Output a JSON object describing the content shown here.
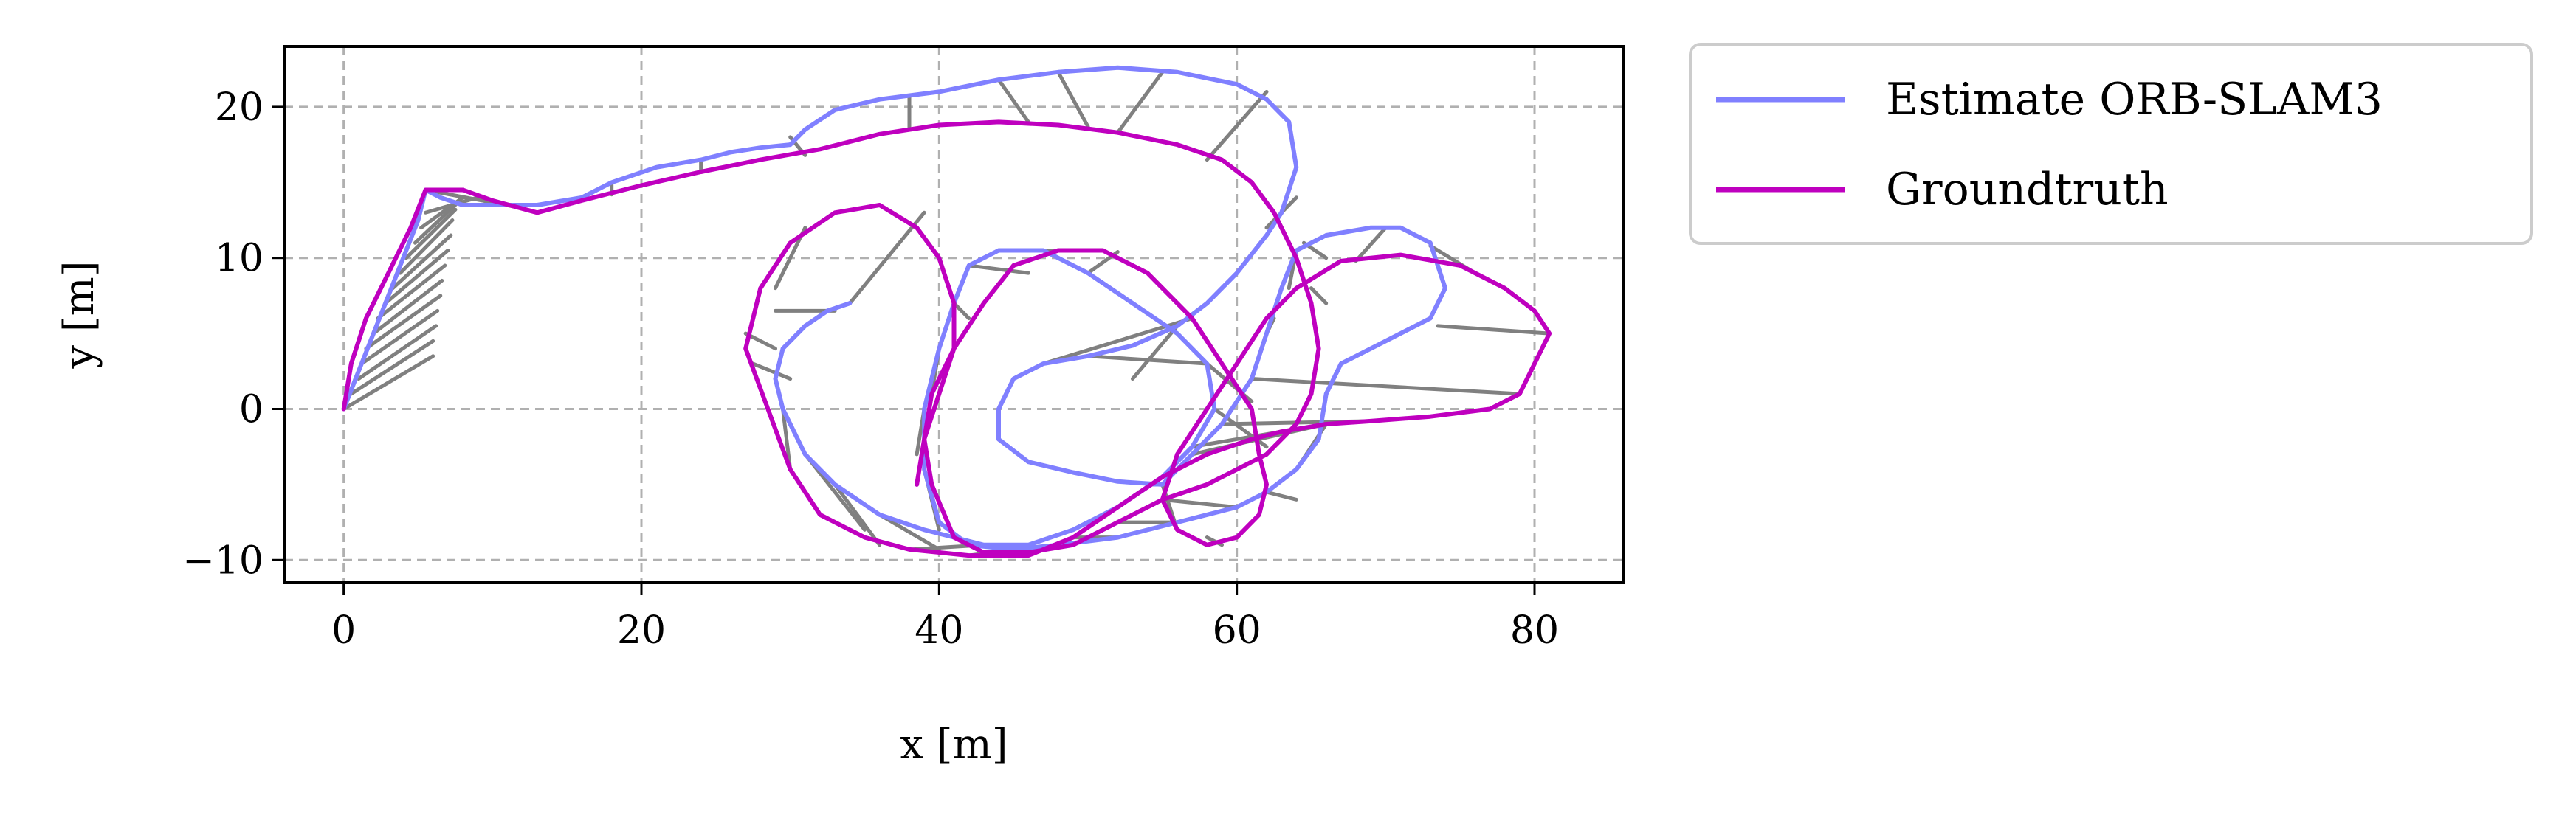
{
  "chart_data": {
    "type": "line",
    "title": "",
    "xlabel": "x [m]",
    "ylabel": "y [m]",
    "xlim": [
      -4,
      86
    ],
    "ylim": [
      -11.5,
      24
    ],
    "xticks": [
      0,
      20,
      40,
      60,
      80
    ],
    "yticks": [
      -10,
      0,
      10,
      20
    ],
    "xtick_labels": [
      "0",
      "20",
      "40",
      "60",
      "80"
    ],
    "ytick_labels": [
      "−10",
      "0",
      "10",
      "20"
    ],
    "grid": true,
    "legend_position": "outside-upper-right",
    "series": [
      {
        "name": "Estimate ORB-SLAM3",
        "color": "#8080ff",
        "points": [
          [
            0,
            0
          ],
          [
            1,
            2.5
          ],
          [
            2,
            5
          ],
          [
            3,
            7.5
          ],
          [
            4,
            10
          ],
          [
            5,
            12.5
          ],
          [
            5.5,
            14.5
          ],
          [
            6.5,
            14
          ],
          [
            8,
            13.5
          ],
          [
            10,
            13.5
          ],
          [
            13,
            13.5
          ],
          [
            16,
            14
          ],
          [
            18,
            15
          ],
          [
            21,
            16
          ],
          [
            24,
            16.5
          ],
          [
            26,
            17
          ],
          [
            28,
            17.3
          ],
          [
            30,
            17.5
          ],
          [
            31,
            18.5
          ],
          [
            33,
            19.8
          ],
          [
            36,
            20.5
          ],
          [
            40,
            21
          ],
          [
            44,
            21.8
          ],
          [
            48,
            22.3
          ],
          [
            52,
            22.6
          ],
          [
            56,
            22.3
          ],
          [
            60,
            21.5
          ],
          [
            62,
            20.5
          ],
          [
            63.5,
            19
          ],
          [
            64,
            16
          ],
          [
            63,
            13
          ],
          [
            62,
            11.5
          ],
          [
            60,
            9
          ],
          [
            58,
            7
          ],
          [
            56,
            5.5
          ],
          [
            53,
            4.2
          ],
          [
            50,
            3.5
          ],
          [
            47,
            3
          ],
          [
            45,
            2
          ],
          [
            44,
            0
          ],
          [
            44,
            -2
          ],
          [
            46,
            -3.5
          ],
          [
            49,
            -4.2
          ],
          [
            52,
            -4.8
          ],
          [
            55,
            -5
          ],
          [
            57,
            -3
          ],
          [
            59,
            -1
          ],
          [
            61,
            2
          ],
          [
            62,
            5
          ],
          [
            63,
            8
          ],
          [
            64,
            10.5
          ],
          [
            66,
            11.5
          ],
          [
            69,
            12
          ],
          [
            71,
            12
          ],
          [
            73,
            11
          ],
          [
            74,
            8
          ],
          [
            73,
            6
          ],
          [
            71,
            5
          ],
          [
            69,
            4
          ],
          [
            67,
            3
          ],
          [
            66,
            1
          ],
          [
            65.5,
            -2
          ],
          [
            64,
            -4
          ],
          [
            62,
            -5.5
          ],
          [
            60,
            -6.5
          ],
          [
            56,
            -7.5
          ],
          [
            52,
            -8.5
          ],
          [
            48,
            -9
          ],
          [
            45,
            -9.3
          ],
          [
            42,
            -9
          ],
          [
            40,
            -7.5
          ],
          [
            39,
            -4
          ],
          [
            39,
            0
          ],
          [
            40,
            4
          ],
          [
            41,
            7
          ],
          [
            42,
            9.5
          ],
          [
            44,
            10.5
          ],
          [
            47,
            10.5
          ],
          [
            50,
            9
          ],
          [
            53,
            7
          ],
          [
            56,
            5
          ],
          [
            58,
            3
          ],
          [
            58.5,
            0
          ],
          [
            57,
            -2.5
          ],
          [
            55,
            -4.5
          ],
          [
            52,
            -6.5
          ],
          [
            49,
            -8
          ],
          [
            46,
            -9
          ],
          [
            43,
            -9
          ],
          [
            39,
            -8
          ],
          [
            36,
            -7
          ],
          [
            33,
            -5
          ],
          [
            31,
            -3
          ],
          [
            29.5,
            0
          ],
          [
            29,
            2
          ],
          [
            29.5,
            4
          ],
          [
            31,
            5.5
          ],
          [
            32.5,
            6.5
          ],
          [
            34,
            7
          ]
        ]
      },
      {
        "name": "Groundtruth",
        "color": "#bf00bf",
        "points": [
          [
            0,
            0
          ],
          [
            0.5,
            3
          ],
          [
            1.5,
            6
          ],
          [
            3,
            9
          ],
          [
            4.5,
            12
          ],
          [
            5.5,
            14.5
          ],
          [
            8,
            14.5
          ],
          [
            10,
            13.8
          ],
          [
            13,
            13
          ],
          [
            16,
            13.8
          ],
          [
            20,
            14.8
          ],
          [
            24,
            15.7
          ],
          [
            28,
            16.5
          ],
          [
            32,
            17.2
          ],
          [
            36,
            18.2
          ],
          [
            40,
            18.8
          ],
          [
            44,
            19
          ],
          [
            48,
            18.8
          ],
          [
            52,
            18.3
          ],
          [
            56,
            17.5
          ],
          [
            59,
            16.5
          ],
          [
            61,
            15
          ],
          [
            62.5,
            13
          ],
          [
            64,
            10
          ],
          [
            65,
            7
          ],
          [
            65.5,
            4
          ],
          [
            65,
            1
          ],
          [
            64,
            -1
          ],
          [
            62,
            -3
          ],
          [
            60,
            -4
          ],
          [
            58,
            -5
          ],
          [
            55,
            -6
          ],
          [
            52,
            -7.5
          ],
          [
            49,
            -9
          ],
          [
            46,
            -9.5
          ],
          [
            43,
            -9.5
          ],
          [
            41,
            -8.5
          ],
          [
            39.5,
            -5
          ],
          [
            39,
            -2
          ],
          [
            39.5,
            1
          ],
          [
            41,
            4
          ],
          [
            43,
            7
          ],
          [
            45,
            9.5
          ],
          [
            48,
            10.5
          ],
          [
            51,
            10.5
          ],
          [
            54,
            9
          ],
          [
            57,
            6
          ],
          [
            59,
            3
          ],
          [
            61,
            0
          ],
          [
            61.5,
            -3
          ],
          [
            62,
            -5
          ],
          [
            61.5,
            -7
          ],
          [
            60,
            -8.5
          ],
          [
            58,
            -9
          ],
          [
            56,
            -8
          ],
          [
            55,
            -6
          ],
          [
            56,
            -3
          ],
          [
            58,
            0
          ],
          [
            60,
            3
          ],
          [
            62,
            6
          ],
          [
            64,
            8
          ],
          [
            67,
            9.8
          ],
          [
            71,
            10.2
          ],
          [
            75,
            9.5
          ],
          [
            78,
            8
          ],
          [
            80,
            6.5
          ],
          [
            81,
            5
          ],
          [
            80,
            3
          ],
          [
            79,
            1
          ],
          [
            77,
            0
          ],
          [
            73,
            -0.5
          ],
          [
            69,
            -0.8
          ],
          [
            66,
            -1
          ],
          [
            63,
            -1.5
          ],
          [
            61,
            -2
          ],
          [
            58,
            -3
          ],
          [
            55,
            -4.5
          ],
          [
            52,
            -6.5
          ],
          [
            49,
            -8.5
          ],
          [
            46,
            -9.7
          ],
          [
            42,
            -9.7
          ],
          [
            38,
            -9.3
          ],
          [
            35,
            -8.5
          ],
          [
            32,
            -7
          ],
          [
            30,
            -4
          ],
          [
            28.5,
            0
          ],
          [
            27,
            4
          ],
          [
            28,
            8
          ],
          [
            30,
            11
          ],
          [
            33,
            13
          ],
          [
            36,
            13.5
          ],
          [
            38.5,
            12
          ],
          [
            40,
            10
          ],
          [
            41,
            7
          ],
          [
            41,
            4
          ],
          [
            40,
            1
          ],
          [
            39,
            -2
          ],
          [
            38.5,
            -5
          ]
        ]
      }
    ],
    "residual_segments": [
      [
        [
          0,
          0
        ],
        [
          6,
          3.5
        ]
      ],
      [
        [
          0.5,
          1
        ],
        [
          6,
          4.5
        ]
      ],
      [
        [
          1,
          2
        ],
        [
          6.2,
          5.5
        ]
      ],
      [
        [
          1.2,
          3
        ],
        [
          6.3,
          6.5
        ]
      ],
      [
        [
          1.5,
          4
        ],
        [
          6.5,
          7.5
        ]
      ],
      [
        [
          2,
          5
        ],
        [
          6.6,
          8.5
        ]
      ],
      [
        [
          2.3,
          6
        ],
        [
          6.8,
          9.5
        ]
      ],
      [
        [
          2.8,
          7
        ],
        [
          7,
          10.5
        ]
      ],
      [
        [
          3.3,
          8
        ],
        [
          7.2,
          11.5
        ]
      ],
      [
        [
          3.8,
          9
        ],
        [
          7.3,
          12.5
        ]
      ],
      [
        [
          4.2,
          10
        ],
        [
          7.5,
          13.2
        ]
      ],
      [
        [
          4.8,
          11
        ],
        [
          7.7,
          13.7
        ]
      ],
      [
        [
          5.2,
          12
        ],
        [
          8,
          14
        ]
      ],
      [
        [
          5.5,
          13
        ],
        [
          9,
          14
        ]
      ],
      [
        [
          5.5,
          14.5
        ],
        [
          12,
          13.3
        ]
      ],
      [
        [
          18,
          15
        ],
        [
          18,
          14.2
        ]
      ],
      [
        [
          24,
          16.5
        ],
        [
          24,
          15.7
        ]
      ],
      [
        [
          30,
          18
        ],
        [
          31,
          16.8
        ]
      ],
      [
        [
          38,
          20.7
        ],
        [
          38,
          18.5
        ]
      ],
      [
        [
          44,
          21.8
        ],
        [
          46,
          19
        ]
      ],
      [
        [
          48,
          22.3
        ],
        [
          50,
          18.7
        ]
      ],
      [
        [
          55,
          22.3
        ],
        [
          52,
          18.3
        ]
      ],
      [
        [
          62,
          21
        ],
        [
          58,
          16.5
        ]
      ],
      [
        [
          64,
          14
        ],
        [
          62,
          12
        ]
      ],
      [
        [
          64,
          10.5
        ],
        [
          63.5,
          8
        ]
      ],
      [
        [
          64.5,
          11
        ],
        [
          66,
          10
        ]
      ],
      [
        [
          65,
          8
        ],
        [
          66,
          7
        ]
      ],
      [
        [
          70,
          12
        ],
        [
          68,
          9.8
        ]
      ],
      [
        [
          73,
          10.8
        ],
        [
          76,
          9
        ]
      ],
      [
        [
          73.5,
          5.5
        ],
        [
          81,
          5
        ]
      ],
      [
        [
          31,
          12
        ],
        [
          29,
          8
        ]
      ],
      [
        [
          34,
          7
        ],
        [
          39,
          13
        ]
      ],
      [
        [
          33,
          6.5
        ],
        [
          29,
          6.5
        ]
      ],
      [
        [
          29,
          4
        ],
        [
          27,
          5
        ]
      ],
      [
        [
          30,
          2
        ],
        [
          27.5,
          3
        ]
      ],
      [
        [
          29.5,
          0
        ],
        [
          30,
          -4
        ]
      ],
      [
        [
          31,
          -3
        ],
        [
          35,
          -8
        ]
      ],
      [
        [
          33,
          -5
        ],
        [
          36,
          -9
        ]
      ],
      [
        [
          36,
          -7
        ],
        [
          40,
          -9.3
        ]
      ],
      [
        [
          39,
          -4
        ],
        [
          40,
          -8
        ]
      ],
      [
        [
          39,
          0
        ],
        [
          38.5,
          -3
        ]
      ],
      [
        [
          40,
          4
        ],
        [
          39.5,
          1
        ]
      ],
      [
        [
          41,
          7
        ],
        [
          42,
          6
        ]
      ],
      [
        [
          42,
          9.5
        ],
        [
          46,
          9
        ]
      ],
      [
        [
          44,
          10.5
        ],
        [
          48,
          10.5
        ]
      ],
      [
        [
          50,
          9
        ],
        [
          52,
          10.4
        ]
      ],
      [
        [
          47,
          3
        ],
        [
          57,
          6
        ]
      ],
      [
        [
          50,
          3.5
        ],
        [
          58,
          3
        ]
      ],
      [
        [
          56,
          5.5
        ],
        [
          53,
          2
        ]
      ],
      [
        [
          58,
          3
        ],
        [
          61,
          0.5
        ]
      ],
      [
        [
          58.5,
          0
        ],
        [
          62,
          -2.5
        ]
      ],
      [
        [
          57,
          -2.5
        ],
        [
          63,
          -1.5
        ]
      ],
      [
        [
          55,
          -4.5
        ],
        [
          58,
          -3
        ]
      ],
      [
        [
          57,
          -3
        ],
        [
          66,
          -1
        ]
      ],
      [
        [
          59,
          -1
        ],
        [
          69,
          -0.8
        ]
      ],
      [
        [
          61,
          2
        ],
        [
          79,
          1
        ]
      ],
      [
        [
          62,
          5
        ],
        [
          62.5,
          6
        ]
      ],
      [
        [
          64,
          -4
        ],
        [
          66,
          -1
        ]
      ],
      [
        [
          62,
          -5.5
        ],
        [
          64,
          -6
        ]
      ],
      [
        [
          60,
          -6.5
        ],
        [
          55,
          -6
        ]
      ],
      [
        [
          56,
          -7.5
        ],
        [
          52,
          -7.5
        ]
      ],
      [
        [
          52,
          -8.5
        ],
        [
          49,
          -8.5
        ]
      ],
      [
        [
          48,
          -9
        ],
        [
          46,
          -9.6
        ]
      ],
      [
        [
          45,
          -9.3
        ],
        [
          42,
          -9.7
        ]
      ],
      [
        [
          43,
          -9
        ],
        [
          38,
          -9.3
        ]
      ],
      [
        [
          55,
          -5
        ],
        [
          56,
          -8
        ]
      ],
      [
        [
          59,
          -9
        ],
        [
          58,
          -8.5
        ]
      ]
    ],
    "residual_color": "#808080"
  }
}
